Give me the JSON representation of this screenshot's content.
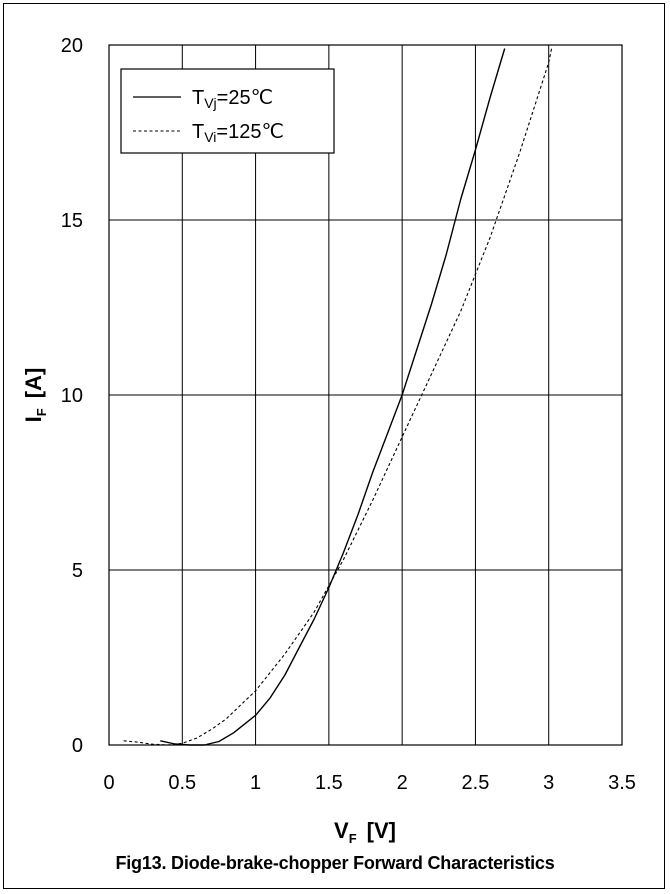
{
  "chart_data": {
    "type": "line",
    "title": "",
    "xlabel": {
      "main": "V",
      "sub": "F",
      "unit": "[V]"
    },
    "ylabel": {
      "main": "I",
      "sub": "F",
      "unit": "[A]"
    },
    "xlim": [
      0,
      3.5
    ],
    "ylim": [
      0,
      20
    ],
    "xticks": [
      "0",
      "0.5",
      "1",
      "1.5",
      "2",
      "2.5",
      "3",
      "3.5"
    ],
    "yticks": [
      "0",
      "5",
      "10",
      "15",
      "20"
    ],
    "grid": true,
    "legend_position": "top-left",
    "series": [
      {
        "name": "TVj=25℃",
        "legend": {
          "pre": "T",
          "sub": "Vj",
          "post": "=25℃"
        },
        "style": "solid",
        "x": [
          0.35,
          0.45,
          0.55,
          0.65,
          0.75,
          0.85,
          1.0,
          1.1,
          1.2,
          1.3,
          1.4,
          1.5,
          1.6,
          1.7,
          1.8,
          1.9,
          2.0,
          2.1,
          2.2,
          2.3,
          2.4,
          2.5,
          2.6,
          2.7
        ],
        "y": [
          0.12,
          0.03,
          0.0,
          0.0,
          0.1,
          0.35,
          0.85,
          1.35,
          2.0,
          2.8,
          3.6,
          4.5,
          5.5,
          6.6,
          7.8,
          8.9,
          10.0,
          11.3,
          12.6,
          14.0,
          15.6,
          17.0,
          18.5,
          19.9
        ]
      },
      {
        "name": "TVi=125℃",
        "legend": {
          "pre": "T",
          "sub": "Vi",
          "post": "=125℃"
        },
        "style": "dashed",
        "x": [
          0.1,
          0.2,
          0.3,
          0.4,
          0.5,
          0.6,
          0.7,
          0.8,
          0.9,
          1.0,
          1.2,
          1.4,
          1.6,
          1.8,
          2.0,
          2.2,
          2.4,
          2.6,
          2.8,
          3.0,
          3.02
        ],
        "y": [
          0.12,
          0.08,
          0.02,
          0.0,
          0.05,
          0.2,
          0.45,
          0.75,
          1.15,
          1.55,
          2.6,
          3.8,
          5.3,
          7.0,
          8.8,
          10.6,
          12.4,
          14.5,
          16.9,
          19.5,
          19.9
        ]
      }
    ]
  },
  "caption": "Fig13. Diode-brake-chopper Forward Characteristics"
}
